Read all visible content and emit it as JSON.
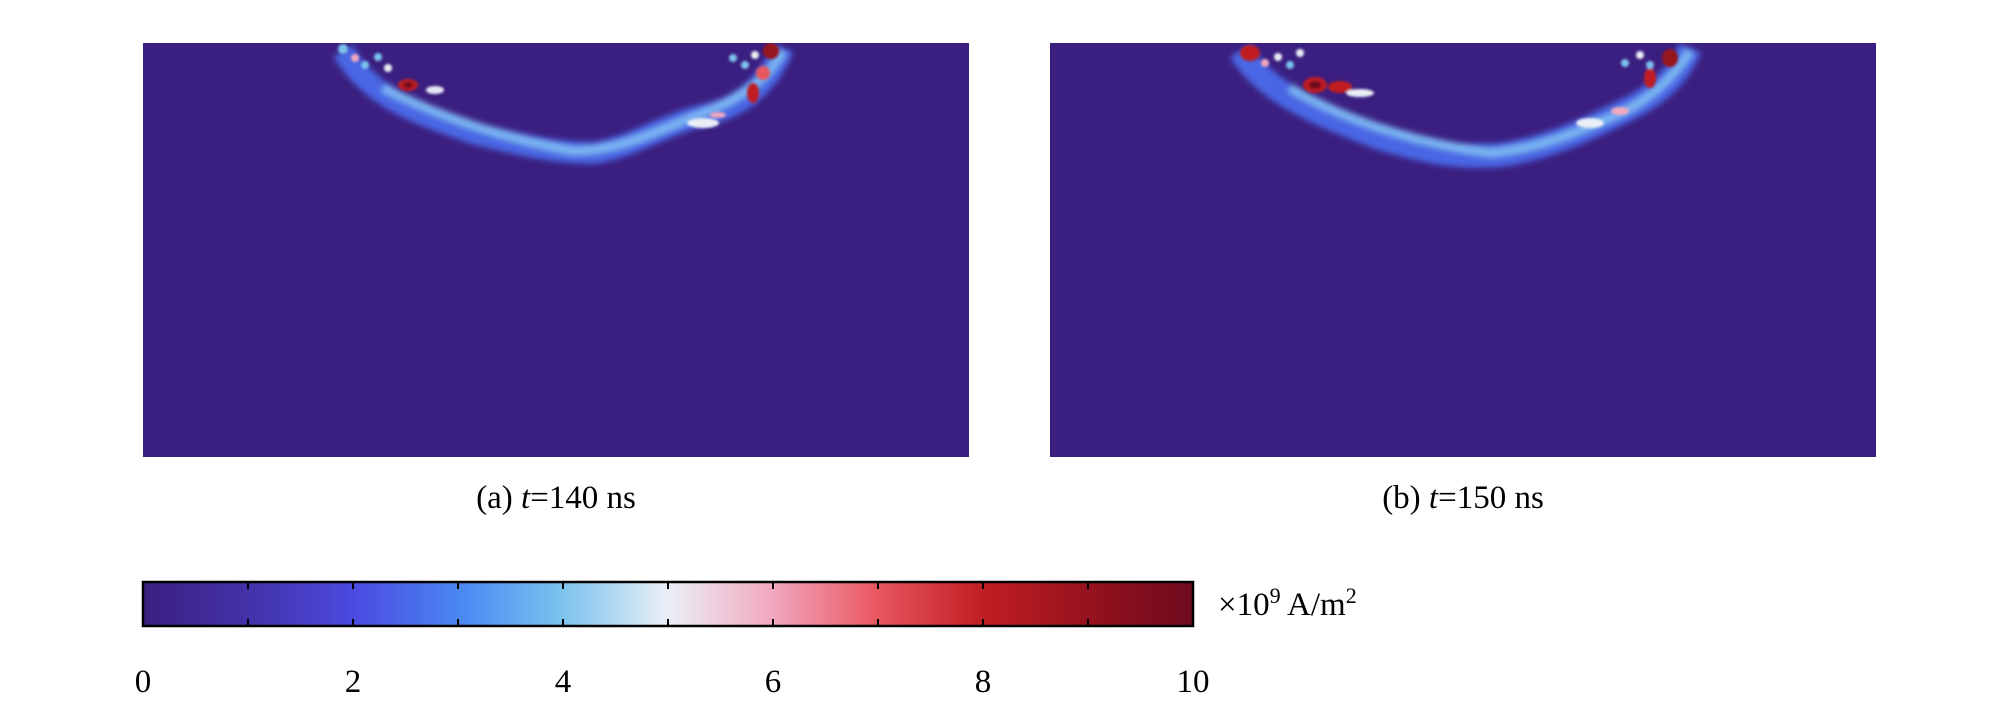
{
  "chart_data": {
    "type": "heatmap",
    "panels": [
      {
        "id": "a",
        "label_prefix": "(a) ",
        "label_var": "t",
        "label_suffix": "=140 ns"
      },
      {
        "id": "b",
        "label_prefix": "(b) ",
        "label_var": "t",
        "label_suffix": "=150 ns"
      }
    ],
    "colorbar": {
      "min": 0,
      "max": 10,
      "tick_values": [
        0,
        1,
        2,
        3,
        4,
        5,
        6,
        7,
        8,
        9,
        10
      ],
      "tick_labels": [
        "0",
        "2",
        "4",
        "6",
        "8",
        "10"
      ],
      "unit_prefix": "×10",
      "unit_exp": "9",
      "unit_mid": " A/m",
      "unit_exp2": "2",
      "colormap": [
        "#3b1f80",
        "#4332a8",
        "#4b4ae0",
        "#4a86f2",
        "#7cc3ee",
        "#eaeff6",
        "#f2a7bf",
        "#e8565f",
        "#c01e22",
        "#96121d",
        "#6e0a1e"
      ]
    },
    "background_color": "#3b1f80"
  }
}
